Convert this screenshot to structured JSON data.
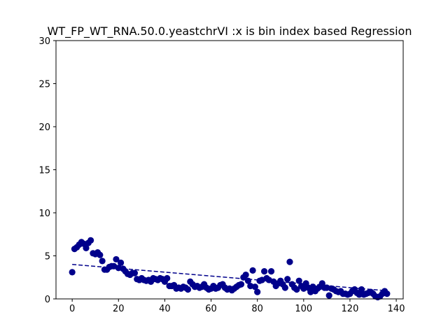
{
  "chart_data": {
    "type": "scatter",
    "title": "WT_FP_WT_RNA.50.0.yeastchrVI :x is bin index based Regression",
    "xlabel": "",
    "ylabel": "",
    "xlim": [
      -7,
      143
    ],
    "ylim": [
      0,
      30
    ],
    "xticks": [
      0,
      20,
      40,
      60,
      80,
      100,
      120,
      140
    ],
    "yticks": [
      0,
      5,
      10,
      15,
      20,
      25,
      30
    ],
    "grid": false,
    "point_color": "#00008b",
    "line_color": "#00008b",
    "points": [
      [
        0,
        3.1
      ],
      [
        1,
        5.8
      ],
      [
        2,
        6.0
      ],
      [
        3,
        6.3
      ],
      [
        4,
        6.6
      ],
      [
        5,
        6.4
      ],
      [
        6,
        5.9
      ],
      [
        7,
        6.5
      ],
      [
        8,
        6.8
      ],
      [
        9,
        5.3
      ],
      [
        10,
        5.2
      ],
      [
        11,
        5.4
      ],
      [
        12,
        5.1
      ],
      [
        13,
        4.4
      ],
      [
        14,
        3.4
      ],
      [
        15,
        3.4
      ],
      [
        16,
        3.7
      ],
      [
        17,
        3.8
      ],
      [
        18,
        3.8
      ],
      [
        19,
        4.6
      ],
      [
        20,
        3.6
      ],
      [
        21,
        4.2
      ],
      [
        22,
        3.5
      ],
      [
        23,
        3.2
      ],
      [
        24,
        2.9
      ],
      [
        25,
        2.8
      ],
      [
        26,
        3.0
      ],
      [
        27,
        3.0
      ],
      [
        28,
        2.3
      ],
      [
        29,
        2.2
      ],
      [
        30,
        2.4
      ],
      [
        31,
        2.2
      ],
      [
        32,
        2.1
      ],
      [
        33,
        2.2
      ],
      [
        34,
        2.0
      ],
      [
        35,
        2.4
      ],
      [
        36,
        2.3
      ],
      [
        37,
        2.2
      ],
      [
        38,
        2.4
      ],
      [
        39,
        2.3
      ],
      [
        40,
        2.0
      ],
      [
        41,
        2.4
      ],
      [
        42,
        1.5
      ],
      [
        43,
        1.5
      ],
      [
        44,
        1.6
      ],
      [
        45,
        1.2
      ],
      [
        46,
        1.3
      ],
      [
        47,
        1.2
      ],
      [
        48,
        1.4
      ],
      [
        49,
        1.3
      ],
      [
        50,
        1.1
      ],
      [
        51,
        2.0
      ],
      [
        52,
        1.7
      ],
      [
        53,
        1.4
      ],
      [
        54,
        1.5
      ],
      [
        55,
        1.3
      ],
      [
        56,
        1.4
      ],
      [
        57,
        1.7
      ],
      [
        58,
        1.3
      ],
      [
        59,
        1.1
      ],
      [
        60,
        1.2
      ],
      [
        61,
        1.5
      ],
      [
        62,
        1.2
      ],
      [
        63,
        1.3
      ],
      [
        64,
        1.6
      ],
      [
        65,
        1.7
      ],
      [
        66,
        1.3
      ],
      [
        67,
        1.1
      ],
      [
        68,
        1.2
      ],
      [
        69,
        1.0
      ],
      [
        70,
        1.2
      ],
      [
        71,
        1.4
      ],
      [
        72,
        1.6
      ],
      [
        73,
        1.7
      ],
      [
        74,
        2.5
      ],
      [
        75,
        2.8
      ],
      [
        76,
        2.1
      ],
      [
        77,
        1.5
      ],
      [
        78,
        3.3
      ],
      [
        79,
        1.4
      ],
      [
        80,
        0.8
      ],
      [
        81,
        2.1
      ],
      [
        82,
        2.2
      ],
      [
        83,
        3.2
      ],
      [
        84,
        2.4
      ],
      [
        85,
        2.2
      ],
      [
        86,
        3.2
      ],
      [
        87,
        2.0
      ],
      [
        88,
        1.5
      ],
      [
        89,
        1.8
      ],
      [
        90,
        2.1
      ],
      [
        91,
        1.7
      ],
      [
        92,
        1.3
      ],
      [
        93,
        2.3
      ],
      [
        94,
        4.3
      ],
      [
        95,
        1.7
      ],
      [
        96,
        1.3
      ],
      [
        97,
        1.1
      ],
      [
        98,
        2.1
      ],
      [
        99,
        1.5
      ],
      [
        100,
        1.2
      ],
      [
        101,
        1.8
      ],
      [
        102,
        1.3
      ],
      [
        103,
        0.8
      ],
      [
        104,
        1.4
      ],
      [
        105,
        0.9
      ],
      [
        106,
        1.2
      ],
      [
        107,
        1.4
      ],
      [
        108,
        1.8
      ],
      [
        109,
        1.3
      ],
      [
        110,
        1.3
      ],
      [
        111,
        0.4
      ],
      [
        112,
        1.2
      ],
      [
        113,
        1.1
      ],
      [
        114,
        0.9
      ],
      [
        115,
        0.8
      ],
      [
        116,
        0.9
      ],
      [
        117,
        0.6
      ],
      [
        118,
        0.6
      ],
      [
        119,
        0.5
      ],
      [
        120,
        0.6
      ],
      [
        121,
        0.9
      ],
      [
        122,
        1.1
      ],
      [
        123,
        0.7
      ],
      [
        124,
        0.5
      ],
      [
        125,
        1.1
      ],
      [
        126,
        0.5
      ],
      [
        127,
        0.6
      ],
      [
        128,
        0.7
      ],
      [
        129,
        0.8
      ],
      [
        130,
        0.6
      ],
      [
        131,
        0.3
      ],
      [
        132,
        0.2
      ],
      [
        133,
        0.3
      ],
      [
        134,
        0.6
      ],
      [
        135,
        0.9
      ],
      [
        136,
        0.6
      ]
    ],
    "regression": {
      "x": [
        0,
        136
      ],
      "y": [
        4.0,
        0.95
      ]
    }
  }
}
